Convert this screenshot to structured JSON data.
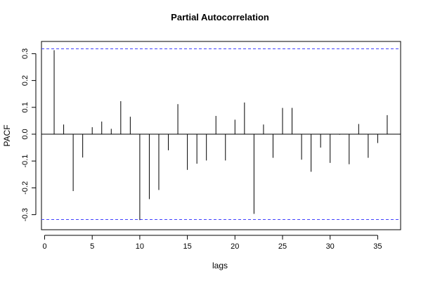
{
  "chart_data": {
    "type": "bar",
    "title": "Partial Autocorrelation",
    "xlabel": "lags",
    "ylabel": "PACF",
    "xlim": [
      0,
      37
    ],
    "ylim": [
      -0.34,
      0.34
    ],
    "x_ticks": [
      0,
      5,
      10,
      15,
      20,
      25,
      30,
      35
    ],
    "y_ticks": [
      -0.3,
      -0.2,
      -0.1,
      0.0,
      0.1,
      0.2,
      0.3
    ],
    "x_tick_labels": [
      "0",
      "5",
      "10",
      "15",
      "20",
      "25",
      "30",
      "35"
    ],
    "y_tick_labels": [
      "-0.3",
      "-0.2",
      "-0.1",
      "0.0",
      "0.1",
      "0.2",
      "0.3"
    ],
    "confidence_bounds": [
      0.318,
      -0.318
    ],
    "confidence_color": "#4040ff",
    "bar_color": "#000000",
    "lags": [
      1,
      2,
      3,
      4,
      5,
      6,
      7,
      8,
      9,
      10,
      11,
      12,
      13,
      14,
      15,
      16,
      17,
      18,
      19,
      20,
      21,
      22,
      23,
      24,
      25,
      26,
      27,
      28,
      29,
      30,
      31,
      32,
      33,
      34,
      35,
      36
    ],
    "values": [
      0.313,
      0.036,
      -0.212,
      -0.087,
      0.026,
      0.047,
      0.02,
      0.123,
      0.065,
      -0.32,
      -0.242,
      -0.208,
      -0.06,
      0.112,
      -0.133,
      -0.11,
      -0.098,
      0.068,
      -0.098,
      0.054,
      0.118,
      -0.297,
      0.036,
      -0.088,
      0.098,
      0.098,
      -0.095,
      -0.14,
      -0.05,
      -0.107,
      -0.002,
      -0.112,
      0.038,
      -0.088,
      -0.033,
      0.071
    ]
  }
}
